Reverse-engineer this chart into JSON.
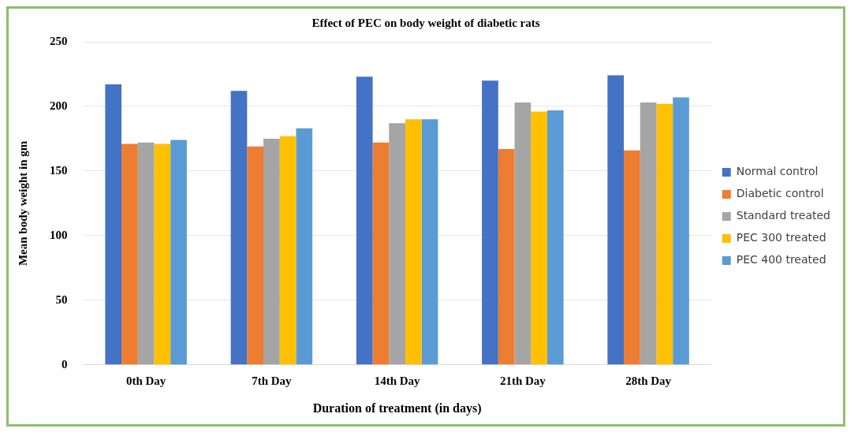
{
  "chart_data": {
    "type": "bar",
    "title": "Effect of PEC on body weight of diabetic rats",
    "xlabel": "Duration of treatment (in days)",
    "ylabel": "Mean body weight in gm",
    "categories": [
      "0th Day",
      "7th Day",
      "14th Day",
      "21th Day",
      "28th Day"
    ],
    "series": [
      {
        "name": "Normal control",
        "color": "#4472c4",
        "values": [
          217,
          212,
          223,
          220,
          224
        ]
      },
      {
        "name": "Diabetic control",
        "color": "#ed7d31",
        "values": [
          171,
          169,
          172,
          167,
          166
        ]
      },
      {
        "name": "Standard treated",
        "color": "#a5a5a5",
        "values": [
          172,
          175,
          187,
          203,
          203
        ]
      },
      {
        "name": "PEC 300 treated",
        "color": "#ffc000",
        "values": [
          171,
          177,
          190,
          196,
          202
        ]
      },
      {
        "name": "PEC 400 treated",
        "color": "#5b9bd5",
        "values": [
          174,
          183,
          190,
          197,
          207
        ]
      }
    ],
    "ylim": [
      0,
      250
    ],
    "yticks": [
      0,
      50,
      100,
      150,
      200,
      250
    ],
    "grid": "y",
    "legend": "right"
  }
}
